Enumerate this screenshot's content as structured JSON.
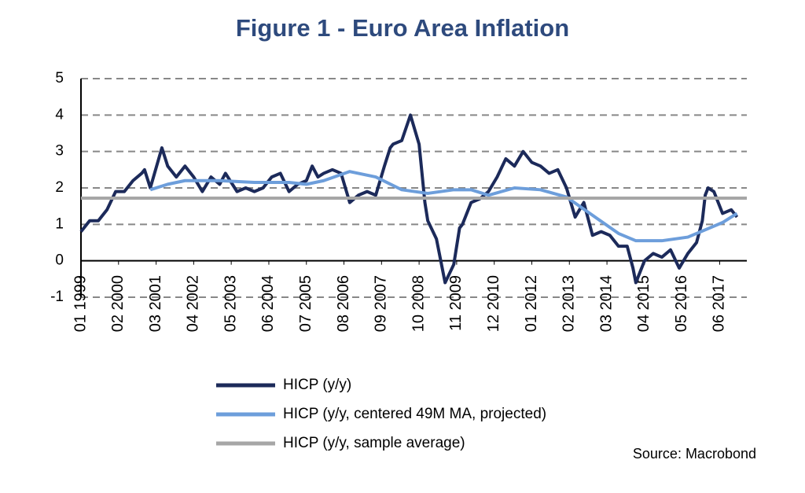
{
  "chart_data": {
    "type": "line",
    "title": "Figure 1 - Euro Area Inflation",
    "source": "Source: Macrobond",
    "xlim": [
      1999,
      2018.2
    ],
    "ylim": [
      -1,
      5
    ],
    "yticks": [
      -1,
      0,
      1,
      2,
      3,
      4,
      5
    ],
    "grid": true,
    "xticks": [
      {
        "value": 1999.0,
        "label": "01 1999"
      },
      {
        "value": 2000.083,
        "label": "02 2000"
      },
      {
        "value": 2001.167,
        "label": "03 2001"
      },
      {
        "value": 2002.25,
        "label": "04 2002"
      },
      {
        "value": 2003.333,
        "label": "05 2003"
      },
      {
        "value": 2004.417,
        "label": "06 2004"
      },
      {
        "value": 2005.5,
        "label": "07 2005"
      },
      {
        "value": 2006.583,
        "label": "08 2006"
      },
      {
        "value": 2007.667,
        "label": "09 2007"
      },
      {
        "value": 2008.75,
        "label": "10 2008"
      },
      {
        "value": 2009.833,
        "label": "11 2009"
      },
      {
        "value": 2010.917,
        "label": "12 2010"
      },
      {
        "value": 2012.0,
        "label": "01 2012"
      },
      {
        "value": 2013.083,
        "label": "02 2013"
      },
      {
        "value": 2014.167,
        "label": "03 2014"
      },
      {
        "value": 2015.25,
        "label": "04 2015"
      },
      {
        "value": 2016.333,
        "label": "05 2016"
      },
      {
        "value": 2017.417,
        "label": "06 2017"
      }
    ],
    "series": [
      {
        "name": "HICP (y/y)",
        "color": "#1c2a5a",
        "x": [
          1999.0,
          1999.25,
          1999.5,
          1999.75,
          2000.0,
          2000.25,
          2000.5,
          2000.75,
          2000.833,
          2001.0,
          2001.333,
          2001.5,
          2001.75,
          2002.0,
          2002.25,
          2002.5,
          2002.75,
          2003.0,
          2003.167,
          2003.5,
          2003.75,
          2004.0,
          2004.25,
          2004.5,
          2004.75,
          2005.0,
          2005.25,
          2005.5,
          2005.667,
          2005.833,
          2006.0,
          2006.25,
          2006.5,
          2006.75,
          2007.0,
          2007.25,
          2007.5,
          2007.75,
          2007.917,
          2008.0,
          2008.25,
          2008.5,
          2008.75,
          2008.917,
          2009.0,
          2009.25,
          2009.5,
          2009.75,
          2009.917,
          2010.0,
          2010.25,
          2010.5,
          2010.75,
          2011.0,
          2011.25,
          2011.5,
          2011.75,
          2012.0,
          2012.25,
          2012.5,
          2012.75,
          2013.0,
          2013.25,
          2013.5,
          2013.75,
          2014.0,
          2014.25,
          2014.5,
          2014.75,
          2014.917,
          2015.0,
          2015.25,
          2015.5,
          2015.75,
          2016.0,
          2016.25,
          2016.5,
          2016.75,
          2016.917,
          2017.0,
          2017.083,
          2017.25,
          2017.5,
          2017.75,
          2017.917
        ],
        "values": [
          0.8,
          1.1,
          1.1,
          1.4,
          1.9,
          1.9,
          2.2,
          2.4,
          2.5,
          2.0,
          3.1,
          2.6,
          2.3,
          2.6,
          2.3,
          1.9,
          2.3,
          2.1,
          2.4,
          1.9,
          2.0,
          1.9,
          2.0,
          2.3,
          2.4,
          1.9,
          2.1,
          2.2,
          2.6,
          2.3,
          2.4,
          2.5,
          2.4,
          1.6,
          1.8,
          1.9,
          1.8,
          2.6,
          3.1,
          3.2,
          3.3,
          4.0,
          3.2,
          1.6,
          1.1,
          0.6,
          -0.6,
          -0.1,
          0.9,
          1.0,
          1.6,
          1.7,
          1.9,
          2.3,
          2.8,
          2.6,
          3.0,
          2.7,
          2.6,
          2.4,
          2.5,
          2.0,
          1.2,
          1.6,
          0.7,
          0.8,
          0.7,
          0.4,
          0.4,
          -0.2,
          -0.6,
          0.0,
          0.2,
          0.1,
          0.3,
          -0.2,
          0.2,
          0.5,
          1.1,
          1.8,
          2.0,
          1.9,
          1.3,
          1.4,
          1.2
        ]
      },
      {
        "name": "HICP (y/y, centered 49M MA, projected)",
        "color": "#6d9edb",
        "x": [
          2001.0,
          2001.5,
          2002.0,
          2003.0,
          2004.0,
          2005.0,
          2005.5,
          2006.0,
          2006.75,
          2007.5,
          2008.25,
          2009.0,
          2009.75,
          2010.25,
          2010.75,
          2011.5,
          2012.25,
          2013.0,
          2013.75,
          2014.5,
          2015.0,
          2015.75,
          2016.5,
          2017.0,
          2017.5,
          2017.917
        ],
        "values": [
          1.95,
          2.1,
          2.2,
          2.2,
          2.15,
          2.15,
          2.1,
          2.2,
          2.45,
          2.3,
          1.95,
          1.85,
          1.95,
          1.95,
          1.8,
          2.0,
          1.95,
          1.75,
          1.25,
          0.75,
          0.55,
          0.55,
          0.65,
          0.85,
          1.05,
          1.3
        ]
      },
      {
        "name": "HICP (y/y, sample average)",
        "color": "#a6a6a6",
        "value": 1.72
      }
    ]
  }
}
